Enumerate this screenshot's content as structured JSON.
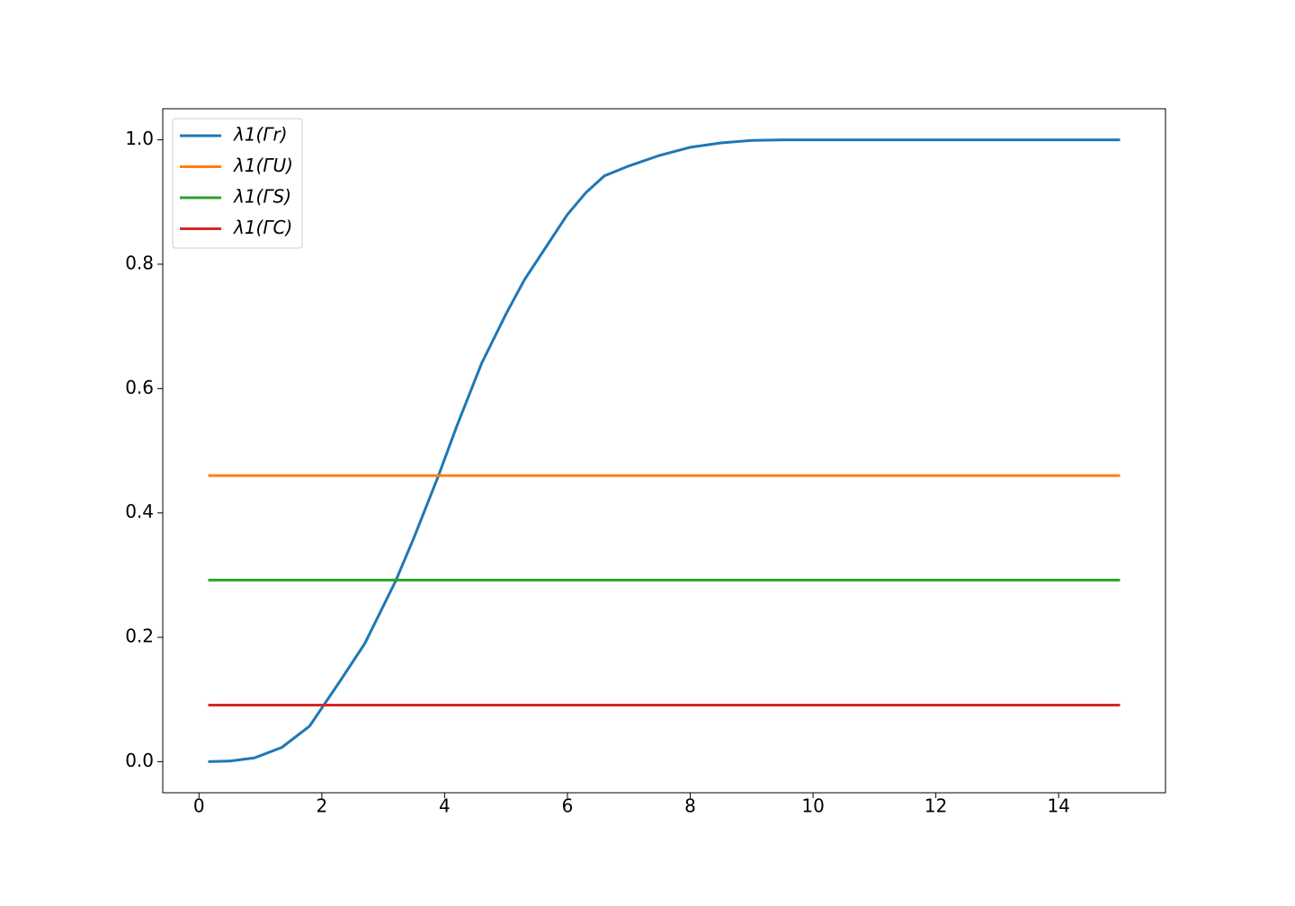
{
  "chart_data": {
    "type": "line",
    "x": [
      0.15,
      0.5,
      0.9,
      1.35,
      1.8,
      2.3,
      2.7,
      3.0,
      3.2,
      3.5,
      3.9,
      4.2,
      4.6,
      5.0,
      5.3,
      5.7,
      6.0,
      6.3,
      6.6,
      7.0,
      7.5,
      8.0,
      8.5,
      9.0,
      9.5,
      10,
      15
    ],
    "series": [
      {
        "name": "λ1(Γr)",
        "color": "#1f77b4",
        "values": [
          0,
          0.001,
          0.006,
          0.023,
          0.057,
          0.13,
          0.19,
          0.25,
          0.29,
          0.36,
          0.46,
          0.54,
          0.64,
          0.72,
          0.775,
          0.835,
          0.88,
          0.915,
          0.942,
          0.958,
          0.975,
          0.988,
          0.995,
          0.999,
          1.0,
          1.0,
          1.0
        ]
      },
      {
        "name": "λ1(ΓU)",
        "color": "#ff7f0e",
        "values": [
          0.46,
          0.46,
          0.46,
          0.46,
          0.46,
          0.46,
          0.46,
          0.46,
          0.46,
          0.46,
          0.46,
          0.46,
          0.46,
          0.46,
          0.46,
          0.46,
          0.46,
          0.46,
          0.46,
          0.46,
          0.46,
          0.46,
          0.46,
          0.46,
          0.46,
          0.46,
          0.46
        ]
      },
      {
        "name": "λ1(ΓS)",
        "color": "#2ca02c",
        "values": [
          0.292,
          0.292,
          0.292,
          0.292,
          0.292,
          0.292,
          0.292,
          0.292,
          0.292,
          0.292,
          0.292,
          0.292,
          0.292,
          0.292,
          0.292,
          0.292,
          0.292,
          0.292,
          0.292,
          0.292,
          0.292,
          0.292,
          0.292,
          0.292,
          0.292,
          0.292,
          0.292
        ]
      },
      {
        "name": "λ1(ΓC)",
        "color": "#d62728",
        "values": [
          0.091,
          0.091,
          0.091,
          0.091,
          0.091,
          0.091,
          0.091,
          0.091,
          0.091,
          0.091,
          0.091,
          0.091,
          0.091,
          0.091,
          0.091,
          0.091,
          0.091,
          0.091,
          0.091,
          0.091,
          0.091,
          0.091,
          0.091,
          0.091,
          0.091,
          0.091,
          0.091
        ]
      }
    ],
    "xlim": [
      -0.59,
      15.74
    ],
    "xticks": [
      0,
      2,
      4,
      6,
      8,
      10,
      12,
      14
    ],
    "ylim": [
      -0.05,
      1.05
    ],
    "yticks": [
      {
        "value": 0,
        "label": "0.0"
      },
      {
        "value": 0.2,
        "label": "0.2"
      },
      {
        "value": 0.4,
        "label": "0.4"
      },
      {
        "value": 0.6,
        "label": "0.6"
      },
      {
        "value": 0.8,
        "label": "0.8"
      },
      {
        "value": 1.0,
        "label": "1.0"
      }
    ],
    "grid": false,
    "legend": "upper-left"
  }
}
